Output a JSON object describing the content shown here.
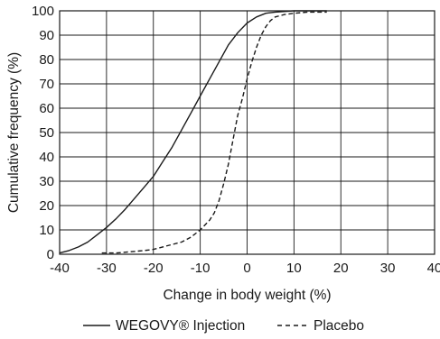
{
  "chart_data": {
    "type": "line",
    "title": "",
    "xlabel": "Change in body weight (%)",
    "ylabel": "Cumulative frequency (%)",
    "xlim": [
      -40,
      40
    ],
    "ylim": [
      0,
      100
    ],
    "x_ticks": [
      -40,
      -30,
      -20,
      -10,
      0,
      10,
      20,
      30,
      40
    ],
    "y_ticks": [
      0,
      10,
      20,
      30,
      40,
      50,
      60,
      70,
      80,
      90,
      100
    ],
    "x_tick_labels": [
      "-40",
      "-30",
      "-20",
      "-10",
      "0",
      "10",
      "20",
      "30",
      "40"
    ],
    "y_tick_labels": [
      "0",
      "10",
      "20",
      "30",
      "40",
      "50",
      "60",
      "70",
      "80",
      "90",
      "100"
    ],
    "grid": true,
    "legend_position": "bottom-center",
    "series": [
      {
        "name": "WEGOVY® Injection",
        "line_style": "solid",
        "color": "#1a1a1a",
        "points": [
          [
            -40,
            0.5
          ],
          [
            -38,
            1.5
          ],
          [
            -36,
            3
          ],
          [
            -34,
            5
          ],
          [
            -32,
            8
          ],
          [
            -30,
            11
          ],
          [
            -28,
            14.5
          ],
          [
            -26,
            18.5
          ],
          [
            -24,
            23
          ],
          [
            -22,
            27.5
          ],
          [
            -20,
            32
          ],
          [
            -18,
            38
          ],
          [
            -16,
            44
          ],
          [
            -14,
            51
          ],
          [
            -12,
            58
          ],
          [
            -10,
            65
          ],
          [
            -8,
            72
          ],
          [
            -6,
            79
          ],
          [
            -4,
            86
          ],
          [
            -2,
            91
          ],
          [
            0,
            95
          ],
          [
            2,
            97.5
          ],
          [
            4,
            99
          ],
          [
            6,
            99.5
          ],
          [
            10,
            100
          ],
          [
            17,
            100
          ]
        ]
      },
      {
        "name": "Placebo",
        "line_style": "dashed",
        "color": "#1a1a1a",
        "points": [
          [
            -31,
            0.5
          ],
          [
            -28,
            0.5
          ],
          [
            -25,
            1
          ],
          [
            -22,
            1.5
          ],
          [
            -20,
            2
          ],
          [
            -18,
            3
          ],
          [
            -16,
            4
          ],
          [
            -14,
            5
          ],
          [
            -12,
            7
          ],
          [
            -10,
            10
          ],
          [
            -8,
            14
          ],
          [
            -7,
            17
          ],
          [
            -6,
            22
          ],
          [
            -5,
            29
          ],
          [
            -4,
            37
          ],
          [
            -3,
            47
          ],
          [
            -2,
            57
          ],
          [
            -1,
            64
          ],
          [
            0,
            72
          ],
          [
            1,
            79
          ],
          [
            2,
            85
          ],
          [
            3,
            90
          ],
          [
            4,
            93.5
          ],
          [
            5,
            96
          ],
          [
            6,
            97.5
          ],
          [
            8,
            98.5
          ],
          [
            10,
            99
          ],
          [
            13,
            99.5
          ],
          [
            17,
            99.5
          ]
        ]
      }
    ]
  }
}
